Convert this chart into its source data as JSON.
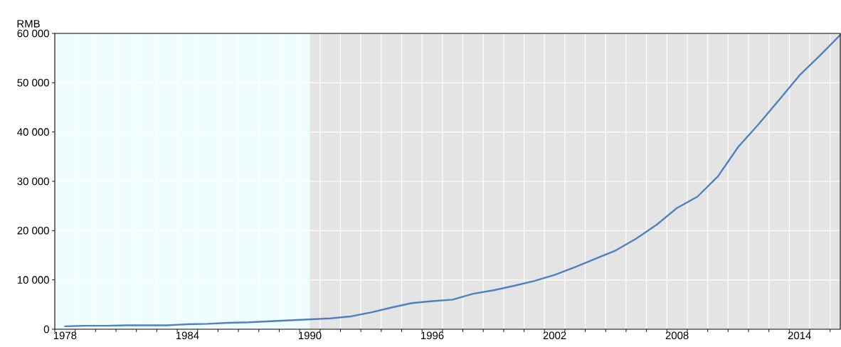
{
  "chart_data": {
    "type": "line",
    "ylabel": "RMB",
    "x": [
      1978,
      1979,
      1980,
      1981,
      1982,
      1983,
      1984,
      1985,
      1986,
      1987,
      1988,
      1989,
      1990,
      1991,
      1992,
      1993,
      1994,
      1995,
      1996,
      1997,
      1998,
      1999,
      2000,
      2001,
      2002,
      2003,
      2004,
      2005,
      2006,
      2007,
      2008,
      2009,
      2010,
      2011,
      2012,
      2013,
      2014,
      2015,
      2016
    ],
    "series": [
      {
        "color": "#4e80c2",
        "values": [
          600,
          700,
          700,
          800,
          800,
          800,
          1000,
          1100,
          1300,
          1400,
          1600,
          1800,
          2000,
          2200,
          2600,
          3400,
          4400,
          5300,
          5700,
          6000,
          7200,
          7900,
          8800,
          9800,
          11000,
          12600,
          14300,
          16000,
          18400,
          21200,
          24600,
          26900,
          31000,
          37000,
          41600,
          46500,
          51500,
          55500,
          59700
        ]
      }
    ],
    "xlim": [
      1977.5,
      2016
    ],
    "ylim": [
      0,
      60000
    ],
    "xticks": [
      {
        "value": 1977.5,
        "label": null
      },
      {
        "value": 1978.5,
        "label": null
      },
      {
        "value": 1979.5,
        "label": null
      },
      {
        "value": 1980.5,
        "label": null
      },
      {
        "value": 1981.5,
        "label": null
      },
      {
        "value": 1982.5,
        "label": null
      },
      {
        "value": 1983.5,
        "label": null
      },
      {
        "value": 1984.5,
        "label": null
      },
      {
        "value": 1985.5,
        "label": null
      },
      {
        "value": 1986.5,
        "label": null
      },
      {
        "value": 1987.5,
        "label": null
      },
      {
        "value": 1988.5,
        "label": null
      },
      {
        "value": 1989.5,
        "label": null
      },
      {
        "value": 1990.5,
        "label": null
      },
      {
        "value": 1991.5,
        "label": null
      },
      {
        "value": 1992.5,
        "label": null
      },
      {
        "value": 1993.5,
        "label": null
      },
      {
        "value": 1994.5,
        "label": null
      },
      {
        "value": 1995.5,
        "label": null
      },
      {
        "value": 1996.5,
        "label": null
      },
      {
        "value": 1997.5,
        "label": null
      },
      {
        "value": 1998.5,
        "label": null
      },
      {
        "value": 1999.5,
        "label": null
      },
      {
        "value": 2000.5,
        "label": null
      },
      {
        "value": 2001.5,
        "label": null
      },
      {
        "value": 2002.5,
        "label": null
      },
      {
        "value": 2003.5,
        "label": null
      },
      {
        "value": 2004.5,
        "label": null
      },
      {
        "value": 2005.5,
        "label": null
      },
      {
        "value": 2006.5,
        "label": null
      },
      {
        "value": 2007.5,
        "label": null
      },
      {
        "value": 2008.5,
        "label": null
      },
      {
        "value": 2009.5,
        "label": null
      },
      {
        "value": 2010.5,
        "label": null
      },
      {
        "value": 2011.5,
        "label": null
      },
      {
        "value": 2012.5,
        "label": null
      },
      {
        "value": 2013.5,
        "label": null
      },
      {
        "value": 2014.5,
        "label": null
      },
      {
        "value": 2015.5,
        "label": null
      },
      {
        "value": 1978,
        "label": "1978"
      },
      {
        "value": 1984,
        "label": "1984"
      },
      {
        "value": 1990,
        "label": "1990"
      },
      {
        "value": 1996,
        "label": "1996"
      },
      {
        "value": 2002,
        "label": "2002"
      },
      {
        "value": 2008,
        "label": "2008"
      },
      {
        "value": 2014,
        "label": "2014"
      }
    ],
    "yticks": [
      {
        "value": 0,
        "label": "0"
      },
      {
        "value": 10000,
        "label": "10 000"
      },
      {
        "value": 20000,
        "label": "20 000"
      },
      {
        "value": 30000,
        "label": "30 000"
      },
      {
        "value": 40000,
        "label": "40 000"
      },
      {
        "value": 50000,
        "label": "50 000"
      },
      {
        "value": 60000,
        "label": "60 000"
      }
    ],
    "bands": [
      {
        "axis": "x",
        "from": 1977.5,
        "to": 1990,
        "color": "#f0fdff"
      },
      {
        "axis": "x",
        "from": 1990,
        "to": 2016,
        "color": "#e4e4e4"
      }
    ],
    "grid": true,
    "marker": "none",
    "line_style": "solid"
  }
}
